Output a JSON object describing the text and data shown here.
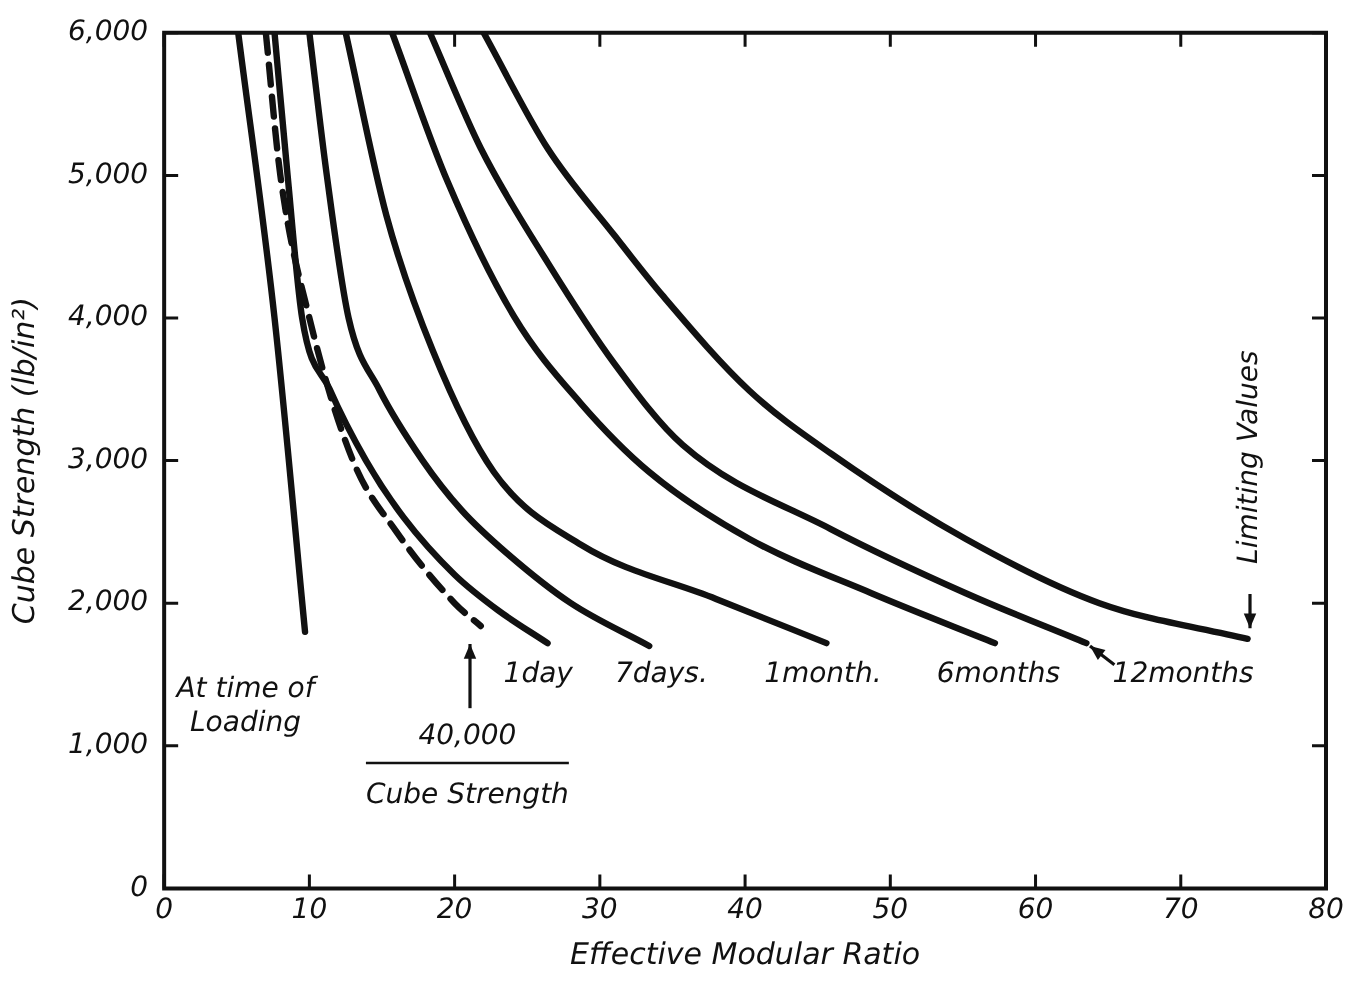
{
  "chart_data": {
    "type": "line",
    "xlabel": "Effective Modular Ratio",
    "ylabel": "Cube Strength (lb/in²)",
    "xlim": [
      0,
      80
    ],
    "xticks": [
      0,
      10,
      20,
      30,
      40,
      50,
      60,
      70,
      80
    ],
    "ylim": [
      0,
      6000
    ],
    "yticks": [
      {
        "value": 0,
        "label": "0"
      },
      {
        "value": 1000,
        "label": "1,000"
      },
      {
        "value": 2000,
        "label": "2,000"
      },
      {
        "value": 3000,
        "label": "3,000"
      },
      {
        "value": 4000,
        "label": "4,000"
      },
      {
        "value": 5000,
        "label": "5,000"
      },
      {
        "value": 6000,
        "label": "6,000"
      }
    ],
    "grid": false,
    "legend": false,
    "marker": "none",
    "series": [
      {
        "color": "#111111",
        "x": [
          5.1,
          7.6,
          9.7
        ],
        "values": [
          6000,
          4000,
          1800
        ]
      },
      {
        "color": "#111111",
        "line_style": "dashed",
        "x": [
          7,
          8,
          10,
          13,
          16,
          20,
          21.8
        ],
        "values": [
          6000,
          5000,
          4000,
          3000,
          2500,
          2000,
          1840
        ]
      },
      {
        "color": "#111111",
        "x": [
          7.6,
          8.5,
          9.5,
          11.4,
          13.9,
          16.5,
          20,
          23,
          26.4
        ],
        "values": [
          6000,
          5000,
          4000,
          3500,
          3000,
          2600,
          2200,
          1950,
          1720
        ]
      },
      {
        "color": "#111111",
        "x": [
          10,
          11.2,
          12.7,
          14.8,
          17.8,
          20.5,
          23.6,
          28,
          33.4
        ],
        "values": [
          6000,
          5000,
          4000,
          3500,
          3000,
          2650,
          2350,
          2000,
          1700
        ]
      },
      {
        "color": "#111111",
        "x": [
          12.5,
          15.3,
          18.5,
          22.7,
          28.7,
          38,
          45.6
        ],
        "values": [
          6000,
          4720,
          3770,
          2920,
          2410,
          2030,
          1720
        ]
      },
      {
        "color": "#111111",
        "x": [
          15.7,
          19.5,
          24.1,
          28.7,
          33.4,
          40.3,
          48.7,
          57.2
        ],
        "values": [
          6000,
          4960,
          4010,
          3400,
          2920,
          2450,
          2070,
          1720
        ]
      },
      {
        "color": "#111111",
        "x": [
          18.3,
          21.8,
          26.4,
          31,
          35.7,
          45.9,
          55.2,
          63.5
        ],
        "values": [
          6000,
          5190,
          4390,
          3680,
          3110,
          2520,
          2070,
          1720
        ]
      },
      {
        "color": "#111111",
        "x": [
          22,
          26.4,
          31,
          34.3,
          40.3,
          45.9,
          55.2,
          64.4,
          74.6
        ],
        "values": [
          6000,
          5190,
          4580,
          4160,
          3490,
          3050,
          2450,
          2000,
          1750
        ]
      }
    ],
    "annotations": [
      "At time of Loading",
      "40,000",
      "Cube Strength",
      "1day",
      "7days.",
      "1month.",
      "6months",
      "12months",
      "Limiting Values"
    ]
  }
}
